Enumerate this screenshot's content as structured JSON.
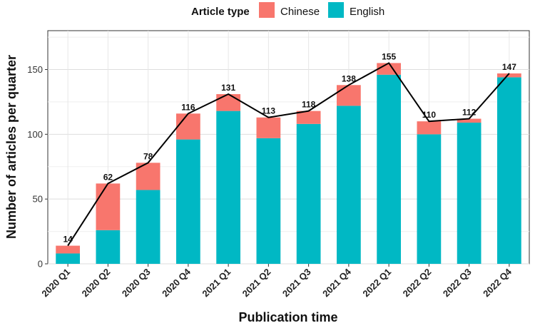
{
  "chart_data": {
    "type": "bar",
    "stacked": true,
    "categories": [
      "2020 Q1",
      "2020 Q2",
      "2020 Q3",
      "2020 Q4",
      "2021 Q1",
      "2021 Q2",
      "2021 Q3",
      "2021 Q4",
      "2022 Q1",
      "2022 Q2",
      "2022 Q3",
      "2022 Q4"
    ],
    "series": [
      {
        "name": "English",
        "color": "#00B8C4",
        "values": [
          8,
          26,
          57,
          96,
          118,
          97,
          108,
          122,
          146,
          100,
          109,
          144
        ]
      },
      {
        "name": "Chinese",
        "color": "#F8766D",
        "values": [
          6,
          36,
          21,
          20,
          13,
          16,
          10,
          16,
          9,
          10,
          3,
          3
        ]
      }
    ],
    "totals": [
      14,
      62,
      78,
      116,
      131,
      113,
      118,
      138,
      155,
      110,
      112,
      147
    ],
    "total_line_color": "#000000",
    "xlabel": "Publication time",
    "ylabel": "Number of articles per quarter",
    "ylim": [
      0,
      180
    ],
    "yticks": [
      0,
      50,
      100,
      150
    ],
    "grid": true,
    "legend": {
      "title": "Article type",
      "position": "top",
      "entries": [
        {
          "label": "Chinese",
          "color": "#F8766D"
        },
        {
          "label": "English",
          "color": "#00B8C4"
        }
      ]
    }
  }
}
